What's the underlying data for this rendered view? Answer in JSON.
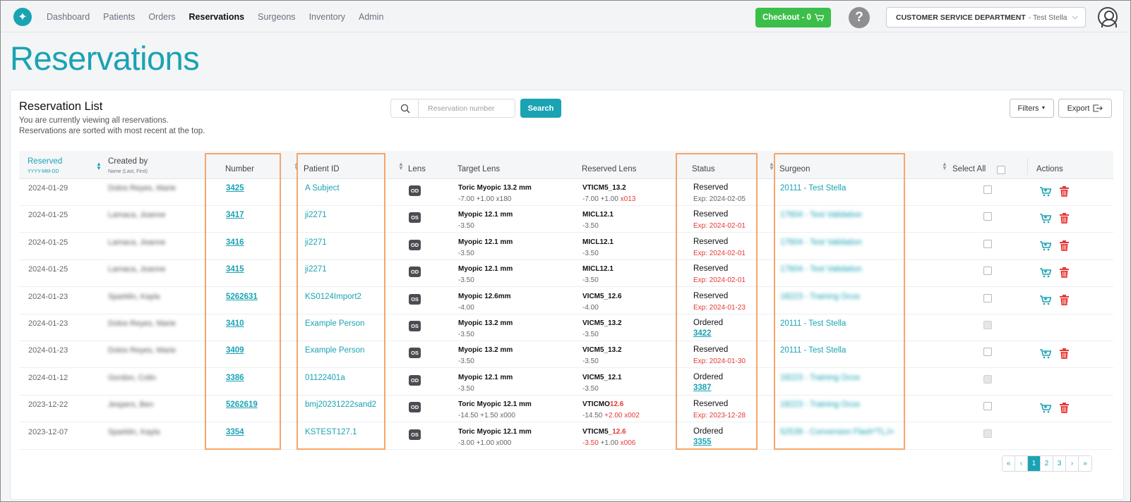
{
  "nav": {
    "links": [
      "Dashboard",
      "Patients",
      "Orders",
      "Reservations",
      "Surgeons",
      "Inventory",
      "Admin"
    ],
    "active": "Reservations",
    "checkout_label": "Checkout - 0",
    "help_label": "?",
    "department": "CUSTOMER SERVICE DEPARTMENT",
    "department_user": " - Test Stella"
  },
  "page": {
    "title": "Reservations"
  },
  "list": {
    "title": "Reservation List",
    "desc_1": "You are currently viewing all reservations.",
    "desc_2": "Reservations are sorted with most recent at the top.",
    "search_placeholder": "Reservation number",
    "search_label": "Search",
    "filters_label": "Filters",
    "export_label": "Export"
  },
  "columns": {
    "reserved": "Reserved",
    "reserved_sub": "YYYY-MM-DD",
    "created_by": "Created by",
    "created_by_sub": "Name (Last, First)",
    "number": "Number",
    "patient_id": "Patient ID",
    "lens": "Lens",
    "target_lens": "Target Lens",
    "reserved_lens": "Reserved Lens",
    "status": "Status",
    "surgeon": "Surgeon",
    "select_all": "Select All",
    "actions": "Actions"
  },
  "rows": [
    {
      "date": "2024-01-29",
      "creator": "Dolos Reyes, Marie",
      "number": "3425",
      "pid": "A Subject",
      "lens": "OD",
      "target": "Toric Myopic 13.2 mm",
      "target_sub": "-7.00 +1.00 x180",
      "reserved": "VTICM5_13.2",
      "reserved_sub": "-7.00 +1.00 ",
      "reserved_sub_red": "x013",
      "status": "Reserved",
      "status_sub": "Exp: 2024-02-05",
      "status_red": false,
      "surgeon": "20111 - Test Stella",
      "surgeon_blur": false,
      "checkbox_enabled": true,
      "actions": true
    },
    {
      "date": "2024-01-25",
      "creator": "Lamaca, Joanne",
      "number": "3417",
      "pid": "ji2271",
      "lens": "OS",
      "target": "Myopic 12.1 mm",
      "target_sub": "-3.50",
      "reserved": "MICL12.1",
      "reserved_sub": "-3.50",
      "reserved_sub_red": "",
      "status": "Reserved",
      "status_sub": "Exp: 2024-02-01",
      "status_red": true,
      "surgeon": "17604 - Test Validation",
      "surgeon_blur": true,
      "checkbox_enabled": true,
      "actions": true
    },
    {
      "date": "2024-01-25",
      "creator": "Lamaca, Joanne",
      "number": "3416",
      "pid": "ji2271",
      "lens": "OD",
      "target": "Myopic 12.1 mm",
      "target_sub": "-3.50",
      "reserved": "MICL12.1",
      "reserved_sub": "-3.50",
      "reserved_sub_red": "",
      "status": "Reserved",
      "status_sub": "Exp: 2024-02-01",
      "status_red": true,
      "surgeon": "17604 - Test Validation",
      "surgeon_blur": true,
      "checkbox_enabled": true,
      "actions": true
    },
    {
      "date": "2024-01-25",
      "creator": "Lamaca, Joanne",
      "number": "3415",
      "pid": "ji2271",
      "lens": "OD",
      "target": "Myopic 12.1 mm",
      "target_sub": "-3.50",
      "reserved": "MICL12.1",
      "reserved_sub": "-3.50",
      "reserved_sub_red": "",
      "status": "Reserved",
      "status_sub": "Exp: 2024-02-01",
      "status_red": true,
      "surgeon": "17604 - Test Validation",
      "surgeon_blur": true,
      "checkbox_enabled": true,
      "actions": true
    },
    {
      "date": "2024-01-23",
      "creator": "Sparklin, Kayla",
      "number": "5262631",
      "pid": "KS0124Import2",
      "lens": "OS",
      "target": "Myopic 12.6mm",
      "target_sub": "-4.00",
      "reserved": "VICM5_12.6",
      "reserved_sub": "-4.00",
      "reserved_sub_red": "",
      "status": "Reserved",
      "status_sub": "Exp: 2024-01-23",
      "status_red": true,
      "surgeon": "18223 - Training Ocos",
      "surgeon_blur": true,
      "checkbox_enabled": true,
      "actions": true
    },
    {
      "date": "2024-01-23",
      "creator": "Dolos Reyes, Marie",
      "number": "3410",
      "pid": "Example Person",
      "lens": "OS",
      "target": "Myopic 13.2 mm",
      "target_sub": "-3.50",
      "reserved": "VICM5_13.2",
      "reserved_sub": "-3.50",
      "reserved_sub_red": "",
      "status": "Ordered",
      "status_link": "3422",
      "surgeon": "20111 - Test Stella",
      "surgeon_blur": false,
      "checkbox_enabled": false,
      "actions": false
    },
    {
      "date": "2024-01-23",
      "creator": "Dolos Reyes, Marie",
      "number": "3409",
      "pid": "Example Person",
      "lens": "OS",
      "target": "Myopic 13.2 mm",
      "target_sub": "-3.50",
      "reserved": "VICM5_13.2",
      "reserved_sub": "-3.50",
      "reserved_sub_red": "",
      "status": "Reserved",
      "status_sub": "Exp: 2024-01-30",
      "status_red": true,
      "surgeon": "20111 - Test Stella",
      "surgeon_blur": false,
      "checkbox_enabled": true,
      "actions": true
    },
    {
      "date": "2024-01-12",
      "creator": "Gordon, Colin",
      "number": "3386",
      "pid": "01122401a",
      "lens": "OD",
      "target": "Myopic 12.1 mm",
      "target_sub": "-3.50",
      "reserved": "VICM5_12.1",
      "reserved_sub": "-3.50",
      "reserved_sub_red": "",
      "status": "Ordered",
      "status_link": "3387",
      "surgeon": "18223 - Training Ocos",
      "surgeon_blur": true,
      "checkbox_enabled": false,
      "actions": false
    },
    {
      "date": "2023-12-22",
      "creator": "Jespers, Ben",
      "number": "5262619",
      "pid": "bmj20231222sand2",
      "lens": "OD",
      "target": "Toric Myopic 12.1 mm",
      "target_sub": "-14.50 +1.50 x000",
      "reserved": "VTICMO",
      "reserved_red": "12.6",
      "reserved_sub": "-14.50 ",
      "reserved_sub_red": "+2.00 x002",
      "status": "Reserved",
      "status_sub": "Exp: 2023-12-28",
      "status_red": true,
      "surgeon": "18223 - Training Ocos",
      "surgeon_blur": true,
      "checkbox_enabled": true,
      "actions": true
    },
    {
      "date": "2023-12-07",
      "creator": "Sparklin, Kayla",
      "number": "3354",
      "pid": "KSTEST127.1",
      "lens": "OS",
      "target": "Toric Myopic 12.1 mm",
      "target_sub": "-3.00 +1.00 x000",
      "reserved": "VTICM5_",
      "reserved_red": "12.6",
      "reserved_sub_lead_red": "-3.50",
      "reserved_sub": " +1.00 ",
      "reserved_sub_red": "x006",
      "status": "Ordered",
      "status_link": "3355",
      "surgeon": "52539 - Conversion Flash*TLJ+",
      "surgeon_blur": true,
      "checkbox_enabled": false,
      "actions": false
    }
  ],
  "pagination": [
    "«",
    "‹",
    "1",
    "2",
    "3",
    "›",
    "»"
  ],
  "pagination_active": "1",
  "colors": {
    "accent": "#1aa3b3",
    "checkout": "#3cbf4a",
    "danger": "#e53935",
    "highlight_box": "#f5a66a"
  }
}
